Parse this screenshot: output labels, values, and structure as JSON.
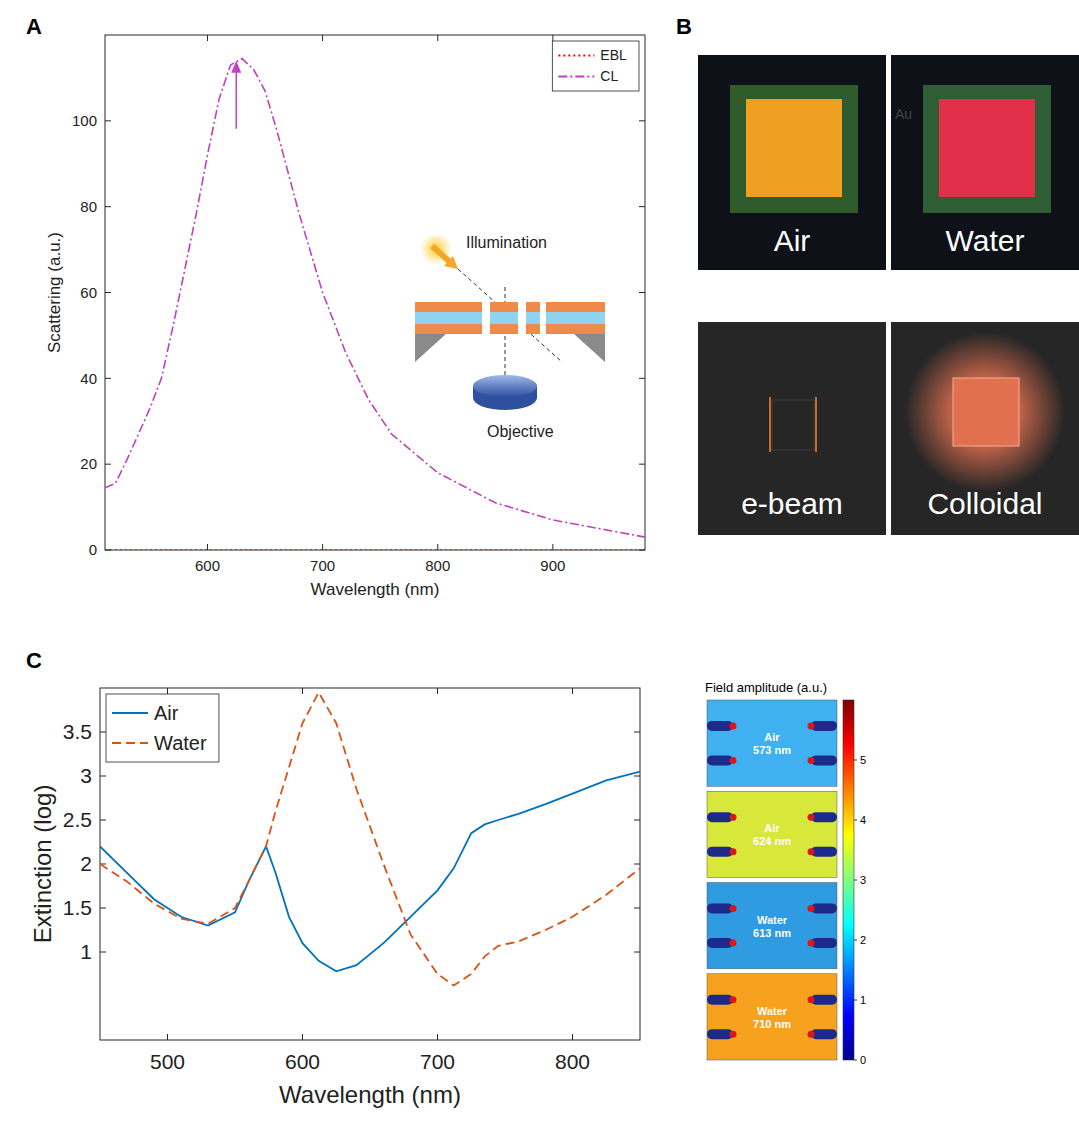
{
  "panel_labels": [
    "A",
    "B",
    "C"
  ],
  "chart_data": [
    {
      "type": "line",
      "x_label": "Wavelength (nm)",
      "y_label": "Scattering (a.u.)",
      "x": [
        511,
        520,
        530,
        540,
        550,
        560,
        570,
        580,
        590,
        600,
        610,
        620,
        630,
        640,
        650,
        660,
        680,
        700,
        720,
        740,
        760,
        800,
        850,
        900,
        950,
        980
      ],
      "xlim": [
        511,
        980
      ],
      "xticks": [
        600,
        700,
        800,
        900
      ],
      "ylim": [
        0,
        120
      ],
      "yticks": [
        0,
        20,
        40,
        60,
        80,
        100
      ],
      "grid": false,
      "legend": "upper right",
      "series": [
        {
          "name": "EBL",
          "color": "#ff0000",
          "line_style": "dotted",
          "values": [
            0,
            0,
            0,
            0,
            0,
            0,
            0,
            0,
            0,
            0,
            0,
            0,
            0,
            0,
            0,
            0,
            0,
            0,
            0,
            0,
            0,
            0,
            0,
            0,
            0,
            0
          ]
        },
        {
          "name": "CL",
          "color": "#c040c0",
          "line_style": "dashdot",
          "values": [
            14.5,
            15.5,
            21,
            27,
            33,
            40,
            52,
            65,
            78,
            92,
            105,
            113,
            114.5,
            112,
            107,
            98,
            78,
            60,
            46,
            35,
            27,
            18,
            11,
            7,
            4.5,
            3
          ]
        }
      ],
      "arrow": {
        "x": 625,
        "y": 114
      },
      "annotations": [
        "Illumination",
        "Objective"
      ]
    },
    {
      "type": "line",
      "x_label": "Wavelength (nm)",
      "y_label": "Extinction (log)",
      "x": [
        450,
        470,
        490,
        510,
        530,
        550,
        560,
        573,
        580,
        590,
        600,
        612,
        625,
        640,
        660,
        680,
        700,
        712,
        725,
        735,
        745,
        760,
        780,
        800,
        825,
        850
      ],
      "xlim": [
        450,
        850
      ],
      "xticks": [
        500,
        600,
        700,
        800
      ],
      "ylim": [
        0,
        4
      ],
      "yticks": [
        1,
        1.5,
        2,
        2.5,
        3,
        3.5
      ],
      "grid": false,
      "legend": "upper left",
      "series": [
        {
          "name": "Air",
          "color": "#0072bd",
          "line_style": "solid",
          "values": [
            2.2,
            1.9,
            1.6,
            1.4,
            1.3,
            1.45,
            1.8,
            2.2,
            1.9,
            1.4,
            1.1,
            0.9,
            0.78,
            0.85,
            1.1,
            1.4,
            1.7,
            1.95,
            2.35,
            2.45,
            2.5,
            2.57,
            2.68,
            2.8,
            2.95,
            3.05
          ]
        },
        {
          "name": "Water",
          "color": "#d95319",
          "line_style": "dashed",
          "values": [
            2.0,
            1.8,
            1.55,
            1.38,
            1.32,
            1.5,
            1.8,
            2.2,
            2.6,
            3.1,
            3.6,
            3.95,
            3.6,
            2.85,
            2.0,
            1.2,
            0.75,
            0.62,
            0.75,
            0.95,
            1.07,
            1.12,
            1.25,
            1.4,
            1.65,
            1.95
          ]
        }
      ]
    }
  ],
  "photos": {
    "top": [
      {
        "label": "Air",
        "color": "#f0a020"
      },
      {
        "label": "Water",
        "color": "#e0304a",
        "annotation": "Au"
      }
    ],
    "bottom": [
      {
        "label": "e-beam",
        "color": "#c86a30"
      },
      {
        "label": "Colloidal",
        "color": "#e07050"
      }
    ]
  },
  "field_maps": {
    "title": "Field amplitude (a.u.)",
    "maps": [
      {
        "medium": "Air",
        "wavelength": "573 nm",
        "color": "#3fb0f0"
      },
      {
        "medium": "Air",
        "wavelength": "624 nm",
        "color": "#d8e83a"
      },
      {
        "medium": "Water",
        "wavelength": "613 nm",
        "color": "#2f9be0"
      },
      {
        "medium": "Water",
        "wavelength": "710 nm",
        "color": "#f7a21e"
      }
    ],
    "colorbar": {
      "range": [
        0,
        6
      ],
      "ticks": [
        0,
        1,
        2,
        3,
        4,
        5
      ]
    }
  }
}
